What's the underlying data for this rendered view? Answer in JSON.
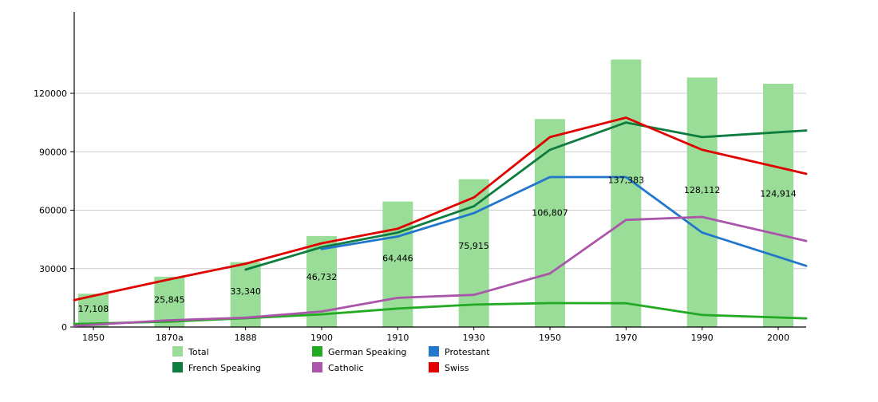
{
  "chart_data": {
    "type": "bar+line",
    "title": "",
    "categories": [
      "1850",
      "1870a",
      "1888",
      "1900",
      "1910",
      "1930",
      "1950",
      "1970",
      "1990",
      "2000"
    ],
    "y_ticks": [
      0,
      30000,
      60000,
      90000,
      120000
    ],
    "ylim": [
      0,
      145000
    ],
    "grid": true,
    "legend_position": "bottom",
    "bars": {
      "name": "Total",
      "color": "#99dd99",
      "values": [
        17108,
        25845,
        33340,
        46732,
        64446,
        75915,
        106807,
        137383,
        128112,
        124914
      ],
      "labels": [
        "17,108",
        "25,845",
        "33,340",
        "46,732",
        "64,446",
        "75,915",
        "106,807",
        "137,383",
        "128,112",
        "124,914"
      ]
    },
    "series": [
      {
        "name": "French Speaking",
        "color": "#0e7c3f",
        "values": [
          null,
          null,
          29500,
          41000,
          48500,
          62000,
          91000,
          105000,
          97500,
          100000
        ]
      },
      {
        "name": "German Speaking",
        "color": "#22aa22",
        "values": [
          1800,
          2800,
          4500,
          6500,
          9500,
          11500,
          12300,
          12200,
          6200,
          4900
        ]
      },
      {
        "name": "Protestant",
        "color": "#2277cc",
        "values": [
          null,
          null,
          null,
          40000,
          46500,
          58500,
          77000,
          77000,
          48500,
          36000
        ]
      },
      {
        "name": "Catholic",
        "color": "#aa55aa",
        "values": [
          1200,
          3500,
          4800,
          8000,
          15000,
          16500,
          27500,
          55000,
          56500,
          47500
        ]
      },
      {
        "name": "Swiss",
        "color": "#e00000",
        "values": [
          16000,
          24500,
          32500,
          43000,
          50500,
          66500,
          97500,
          107500,
          91000,
          82000
        ]
      }
    ],
    "legend_rows": [
      [
        "Total",
        "German Speaking",
        "Protestant"
      ],
      [
        "French Speaking",
        "Catholic",
        "Swiss"
      ]
    ],
    "colors": {
      "grid": "#cccccc",
      "axis": "#000000",
      "text": "#000000"
    }
  }
}
